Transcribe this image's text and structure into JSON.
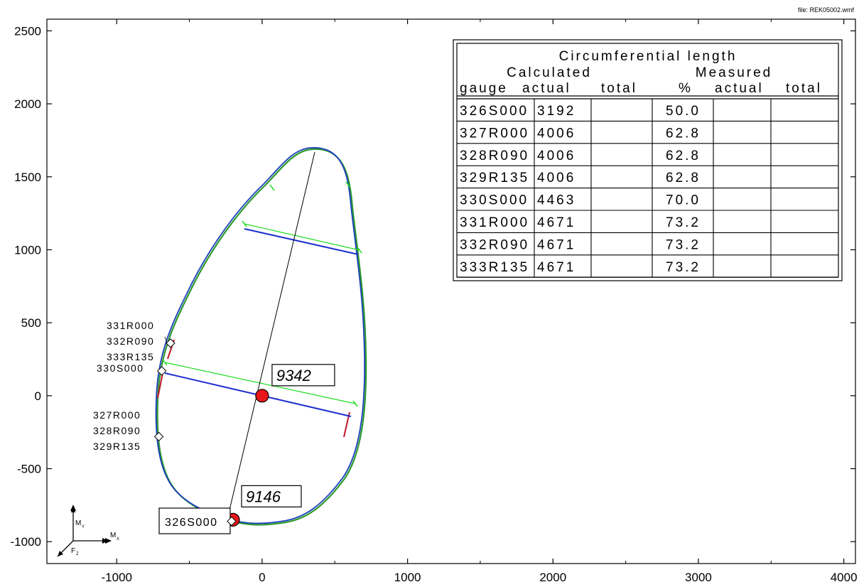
{
  "file_label": "file: REK05002.wmf",
  "colors": {
    "profile_outer": "#1f3fbf",
    "profile_inner": "#2a9a2a",
    "chord_blue": "#1f2fd0",
    "chord_green": "#22dd22",
    "marker_fill": "#e8161b",
    "segment_red": "#c0182a"
  },
  "chart_data": {
    "type": "diagram",
    "xlim": [
      -1480,
      4080
    ],
    "ylim": [
      -1150,
      2580
    ],
    "x_ticks": [
      -1000,
      0,
      1000,
      2000,
      3000,
      4000
    ],
    "x_tick_labels": [
      "-1000",
      "0",
      "1000",
      "2000",
      "3000",
      "4000"
    ],
    "y_ticks": [
      -1000,
      -500,
      0,
      500,
      1000,
      1500,
      2000,
      2500
    ],
    "y_tick_labels": [
      "-1000",
      "-500",
      "0",
      "500",
      "1000",
      "1500",
      "2000",
      "2500"
    ],
    "markers": [
      {
        "label": "9342",
        "x": 0,
        "y": 0
      },
      {
        "label": "9146",
        "x": -200,
        "y": -850
      }
    ],
    "gauge_groups": [
      {
        "labels": [
          "331R000",
          "332R090",
          "333R135"
        ],
        "x": -630,
        "y": 360
      },
      {
        "labels": [
          "330S000"
        ],
        "x": -690,
        "y": 170
      },
      {
        "labels": [
          "327R000",
          "328R090",
          "329R135"
        ],
        "x": -710,
        "y": -280
      }
    ],
    "boxed_gauge": {
      "label": "326S000",
      "x": -210,
      "y": -860
    },
    "axis_indicator": {
      "my": "M",
      "my_sub": "Y",
      "mx": "M",
      "mx_sub": "X",
      "fz": "F",
      "fz_sub": "Z"
    },
    "table": {
      "title": "Circumferential length",
      "group_calculated": "Calculated",
      "group_measured": "Measured",
      "columns": [
        "gauge",
        "actual",
        "total",
        "%",
        "actual",
        "total"
      ],
      "rows": [
        {
          "gauge": "326S000",
          "actual": "3192",
          "total": "",
          "pct": "50.0",
          "m_actual": "",
          "m_total": ""
        },
        {
          "gauge": "327R000",
          "actual": "4006",
          "total": "",
          "pct": "62.8",
          "m_actual": "",
          "m_total": ""
        },
        {
          "gauge": "328R090",
          "actual": "4006",
          "total": "",
          "pct": "62.8",
          "m_actual": "",
          "m_total": ""
        },
        {
          "gauge": "329R135",
          "actual": "4006",
          "total": "",
          "pct": "62.8",
          "m_actual": "",
          "m_total": ""
        },
        {
          "gauge": "330S000",
          "actual": "4463",
          "total": "",
          "pct": "70.0",
          "m_actual": "",
          "m_total": ""
        },
        {
          "gauge": "331R000",
          "actual": "4671",
          "total": "",
          "pct": "73.2",
          "m_actual": "",
          "m_total": ""
        },
        {
          "gauge": "332R090",
          "actual": "4671",
          "total": "",
          "pct": "73.2",
          "m_actual": "",
          "m_total": ""
        },
        {
          "gauge": "333R135",
          "actual": "4671",
          "total": "",
          "pct": "73.2",
          "m_actual": "",
          "m_total": ""
        }
      ]
    }
  }
}
